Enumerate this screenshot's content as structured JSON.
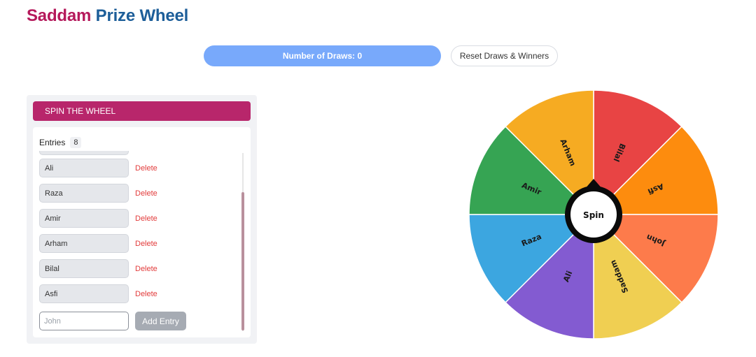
{
  "header": {
    "title_part1": "Saddam",
    "title_part2": "Prize Wheel"
  },
  "draws": {
    "label": "Number of Draws: 0"
  },
  "reset_button": {
    "label": "Reset Draws & Winners"
  },
  "panel": {
    "tab_label": "SPIN THE WHEEL",
    "entries_label": "Entries",
    "entries_count": "8",
    "entries": [
      {
        "name": "Ali",
        "delete_label": "Delete"
      },
      {
        "name": "Raza",
        "delete_label": "Delete"
      },
      {
        "name": "Amir",
        "delete_label": "Delete"
      },
      {
        "name": "Arham",
        "delete_label": "Delete"
      },
      {
        "name": "Bilal",
        "delete_label": "Delete"
      },
      {
        "name": "Asfi",
        "delete_label": "Delete"
      }
    ],
    "add_input": {
      "placeholder": "John"
    },
    "add_button_label": "Add Entry"
  },
  "wheel": {
    "center_label": "Spin",
    "segments": [
      {
        "name": "Bilal",
        "color": "#e84444"
      },
      {
        "name": "Asfi",
        "color": "#fd8c0e"
      },
      {
        "name": "John",
        "color": "#fd7b4b"
      },
      {
        "name": "Saddam",
        "color": "#f0cf52"
      },
      {
        "name": "Ali",
        "color": "#835bd1"
      },
      {
        "name": "Raza",
        "color": "#3ca6e0"
      },
      {
        "name": "Amir",
        "color": "#36a453"
      },
      {
        "name": "Arham",
        "color": "#f6ab22"
      }
    ]
  }
}
